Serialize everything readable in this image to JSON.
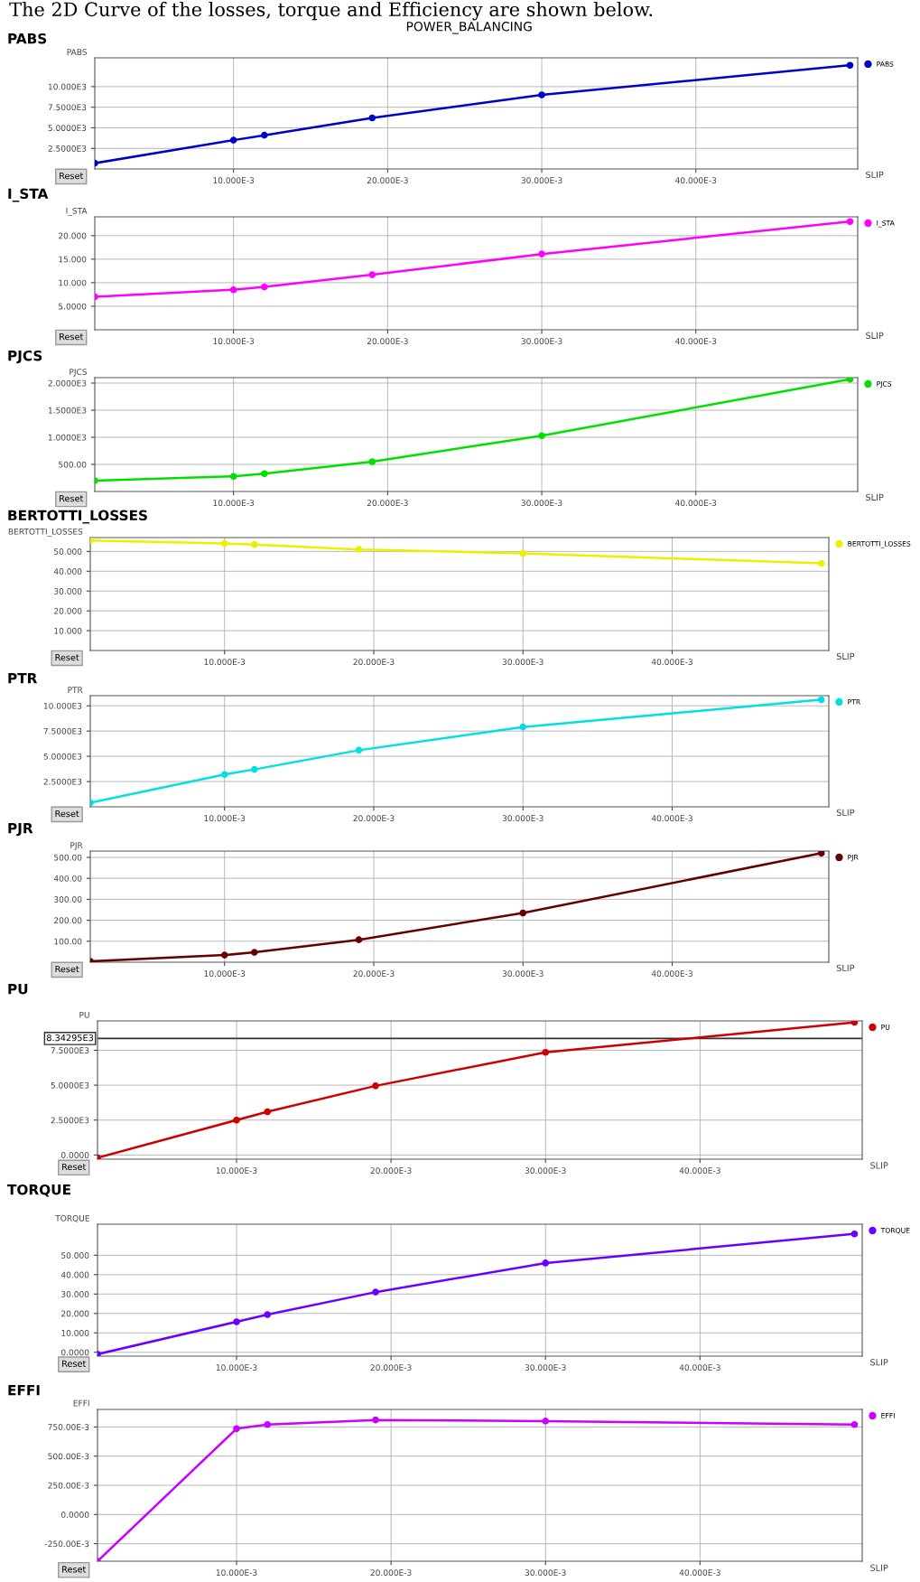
{
  "chart_data": [
    {
      "type": "line",
      "title": "PABS",
      "ylabel": "PABS",
      "xlabel": "SLIP",
      "x": [
        0.001,
        0.01,
        0.012,
        0.019,
        0.03,
        0.05
      ],
      "series": [
        {
          "name": "PABS",
          "color": "#0000cc",
          "values": [
            700,
            3500,
            4100,
            6200,
            9000,
            12600
          ]
        }
      ],
      "xlim": [
        0.001,
        0.0505
      ],
      "xticks": [
        {
          "value": 0.01,
          "label": "10.000E-3"
        },
        {
          "value": 0.02,
          "label": "20.000E-3"
        },
        {
          "value": 0.03,
          "label": "30.000E-3"
        },
        {
          "value": 0.04,
          "label": "40.000E-3"
        }
      ],
      "ylim": [
        0,
        13500
      ],
      "yticks": [
        {
          "value": 2500,
          "label": "2.5000E3"
        },
        {
          "value": 5000,
          "label": "5.0000E3"
        },
        {
          "value": 7500,
          "label": "7.5000E3"
        },
        {
          "value": 10000,
          "label": "10.000E3"
        }
      ],
      "grid": true,
      "legend": "right",
      "marker": "circle",
      "annotations": [
        "The 2D Curve of the losses, torque and Efficiency are shown below.",
        "POWER_BALANCING",
        "Reset"
      ]
    },
    {
      "type": "line",
      "title": "I_STA",
      "ylabel": "I_STA",
      "xlabel": "SLIP",
      "x": [
        0.001,
        0.01,
        0.012,
        0.019,
        0.03,
        0.05
      ],
      "series": [
        {
          "name": "I_STA",
          "color": "#ff00ff",
          "values": [
            7.0,
            8.5,
            9.1,
            11.7,
            16.1,
            23.0
          ]
        }
      ],
      "xlim": [
        0.001,
        0.0505
      ],
      "xticks": [
        {
          "value": 0.01,
          "label": "10.000E-3"
        },
        {
          "value": 0.02,
          "label": "20.000E-3"
        },
        {
          "value": 0.03,
          "label": "30.000E-3"
        },
        {
          "value": 0.04,
          "label": "40.000E-3"
        }
      ],
      "ylim": [
        0,
        24
      ],
      "yticks": [
        {
          "value": 5,
          "label": "5.0000"
        },
        {
          "value": 10,
          "label": "10.000"
        },
        {
          "value": 15,
          "label": "15.000"
        },
        {
          "value": 20,
          "label": "20.000"
        }
      ],
      "grid": true,
      "legend": "right",
      "marker": "circle",
      "annotations": [
        "Reset"
      ]
    },
    {
      "type": "line",
      "title": "PJCS",
      "ylabel": "PJCS",
      "xlabel": "SLIP",
      "x": [
        0.001,
        0.01,
        0.012,
        0.019,
        0.03,
        0.05
      ],
      "series": [
        {
          "name": "PJCS",
          "color": "#00e000",
          "values": [
            200,
            280,
            330,
            550,
            1030,
            2070
          ]
        }
      ],
      "xlim": [
        0.001,
        0.0505
      ],
      "xticks": [
        {
          "value": 0.01,
          "label": "10.000E-3"
        },
        {
          "value": 0.02,
          "label": "20.000E-3"
        },
        {
          "value": 0.03,
          "label": "30.000E-3"
        },
        {
          "value": 0.04,
          "label": "40.000E-3"
        }
      ],
      "ylim": [
        0,
        2100
      ],
      "yticks": [
        {
          "value": 500,
          "label": "500.00"
        },
        {
          "value": 1000,
          "label": "1.0000E3"
        },
        {
          "value": 1500,
          "label": "1.5000E3"
        },
        {
          "value": 2000,
          "label": "2.0000E3"
        }
      ],
      "grid": true,
      "legend": "right",
      "marker": "circle",
      "annotations": [
        "Reset"
      ]
    },
    {
      "type": "line",
      "title": "BERTOTTI_LOSSES",
      "ylabel": "BERTOTTI_LOSSES",
      "xlabel": "SLIP",
      "x": [
        0.001,
        0.01,
        0.012,
        0.019,
        0.03,
        0.05
      ],
      "series": [
        {
          "name": "BERTOTTI_LOSSES",
          "color": "#eeee00",
          "values": [
            55.5,
            54,
            53.5,
            51,
            49,
            44
          ]
        }
      ],
      "xlim": [
        0.001,
        0.0505
      ],
      "xticks": [
        {
          "value": 0.01,
          "label": "10.000E-3"
        },
        {
          "value": 0.02,
          "label": "20.000E-3"
        },
        {
          "value": 0.03,
          "label": "30.000E-3"
        },
        {
          "value": 0.04,
          "label": "40.000E-3"
        }
      ],
      "ylim": [
        0,
        57
      ],
      "yticks": [
        {
          "value": 10,
          "label": "10.000"
        },
        {
          "value": 20,
          "label": "20.000"
        },
        {
          "value": 30,
          "label": "30.000"
        },
        {
          "value": 40,
          "label": "40.000"
        },
        {
          "value": 50,
          "label": "50.000"
        }
      ],
      "grid": true,
      "legend": "right",
      "marker": "circle",
      "annotations": [
        "Reset"
      ]
    },
    {
      "type": "line",
      "title": "PTR",
      "ylabel": "PTR",
      "xlabel": "SLIP",
      "x": [
        0.001,
        0.01,
        0.012,
        0.019,
        0.03,
        0.05
      ],
      "series": [
        {
          "name": "PTR",
          "color": "#00e0e0",
          "values": [
            400,
            3200,
            3700,
            5600,
            7900,
            10600
          ]
        }
      ],
      "xlim": [
        0.001,
        0.0505
      ],
      "xticks": [
        {
          "value": 0.01,
          "label": "10.000E-3"
        },
        {
          "value": 0.02,
          "label": "20.000E-3"
        },
        {
          "value": 0.03,
          "label": "30.000E-3"
        },
        {
          "value": 0.04,
          "label": "40.000E-3"
        }
      ],
      "ylim": [
        0,
        11000
      ],
      "yticks": [
        {
          "value": 2500,
          "label": "2.5000E3"
        },
        {
          "value": 5000,
          "label": "5.0000E3"
        },
        {
          "value": 7500,
          "label": "7.5000E3"
        },
        {
          "value": 10000,
          "label": "10.000E3"
        }
      ],
      "grid": true,
      "legend": "right",
      "marker": "circle",
      "annotations": [
        "Reset"
      ]
    },
    {
      "type": "line",
      "title": "PJR",
      "ylabel": "PJR",
      "xlabel": "SLIP",
      "x": [
        0.001,
        0.01,
        0.012,
        0.019,
        0.03,
        0.05
      ],
      "series": [
        {
          "name": "PJR",
          "color": "#660000",
          "values": [
            4,
            34,
            47,
            107,
            235,
            520
          ]
        }
      ],
      "xlim": [
        0.001,
        0.0505
      ],
      "xticks": [
        {
          "value": 0.01,
          "label": "10.000E-3"
        },
        {
          "value": 0.02,
          "label": "20.000E-3"
        },
        {
          "value": 0.03,
          "label": "30.000E-3"
        },
        {
          "value": 0.04,
          "label": "40.000E-3"
        }
      ],
      "ylim": [
        0,
        530
      ],
      "yticks": [
        {
          "value": 100,
          "label": "100.00"
        },
        {
          "value": 200,
          "label": "200.00"
        },
        {
          "value": 300,
          "label": "300.00"
        },
        {
          "value": 400,
          "label": "400.00"
        },
        {
          "value": 500,
          "label": "500.00"
        }
      ],
      "grid": true,
      "legend": "right",
      "marker": "circle",
      "annotations": [
        "Reset"
      ]
    },
    {
      "type": "line",
      "title": "PU",
      "ylabel": "PU",
      "xlabel": "SLIP",
      "x": [
        0.001,
        0.01,
        0.012,
        0.019,
        0.03,
        0.05
      ],
      "series": [
        {
          "name": "PU",
          "color": "#cc0000",
          "values": [
            -200,
            2500,
            3100,
            4950,
            7350,
            9500
          ]
        }
      ],
      "xlim": [
        0.001,
        0.0505
      ],
      "xticks": [
        {
          "value": 0.01,
          "label": "10.000E-3"
        },
        {
          "value": 0.02,
          "label": "20.000E-3"
        },
        {
          "value": 0.03,
          "label": "30.000E-3"
        },
        {
          "value": 0.04,
          "label": "40.000E-3"
        }
      ],
      "ylim": [
        -300,
        9600
      ],
      "yticks": [
        {
          "value": 0,
          "label": "0.0000"
        },
        {
          "value": 2500,
          "label": "2.5000E3"
        },
        {
          "value": 5000,
          "label": "5.0000E3"
        },
        {
          "value": 7500,
          "label": "7.5000E3"
        }
      ],
      "ref_lines": [
        {
          "axis": "y",
          "value": 8342.95,
          "label": "8.34295E3",
          "color": "#333333"
        }
      ],
      "grid": true,
      "legend": "right",
      "marker": "circle",
      "annotations": [
        "Reset"
      ]
    },
    {
      "type": "line",
      "title": "TORQUE",
      "ylabel": "TORQUE",
      "xlabel": "SLIP",
      "x": [
        0.001,
        0.01,
        0.012,
        0.019,
        0.03,
        0.05
      ],
      "series": [
        {
          "name": "TORQUE",
          "color": "#6a00ff",
          "values": [
            -1,
            15.7,
            19.4,
            31,
            46,
            61
          ]
        }
      ],
      "xlim": [
        0.001,
        0.0505
      ],
      "xticks": [
        {
          "value": 0.01,
          "label": "10.000E-3"
        },
        {
          "value": 0.02,
          "label": "20.000E-3"
        },
        {
          "value": 0.03,
          "label": "30.000E-3"
        },
        {
          "value": 0.04,
          "label": "40.000E-3"
        }
      ],
      "ylim": [
        -2,
        66
      ],
      "yticks": [
        {
          "value": 0,
          "label": "0.0000"
        },
        {
          "value": 10,
          "label": "10.000"
        },
        {
          "value": 20,
          "label": "20.000"
        },
        {
          "value": 30,
          "label": "30.000"
        },
        {
          "value": 40,
          "label": "40.000"
        },
        {
          "value": 50,
          "label": "50.000"
        }
      ],
      "grid": true,
      "legend": "right",
      "marker": "circle",
      "annotations": [
        "Reset"
      ]
    },
    {
      "type": "line",
      "title": "EFFI",
      "ylabel": "EFFI",
      "xlabel": "SLIP",
      "x": [
        0.001,
        0.01,
        0.012,
        0.019,
        0.03,
        0.05
      ],
      "series": [
        {
          "name": "EFFI",
          "color": "#cc00ff",
          "values": [
            -0.4,
            0.735,
            0.77,
            0.81,
            0.8,
            0.77
          ]
        }
      ],
      "xlim": [
        0.001,
        0.0505
      ],
      "xticks": [
        {
          "value": 0.01,
          "label": "10.000E-3"
        },
        {
          "value": 0.02,
          "label": "20.000E-3"
        },
        {
          "value": 0.03,
          "label": "30.000E-3"
        },
        {
          "value": 0.04,
          "label": "40.000E-3"
        }
      ],
      "ylim": [
        -0.4,
        0.9
      ],
      "yticks": [
        {
          "value": -0.25,
          "label": "-250.00E-3"
        },
        {
          "value": 0,
          "label": "0.0000"
        },
        {
          "value": 0.25,
          "label": "250.00E-3"
        },
        {
          "value": 0.5,
          "label": "500.00E-3"
        },
        {
          "value": 0.75,
          "label": "750.00E-3"
        }
      ],
      "grid": true,
      "legend": "right",
      "marker": "circle",
      "annotations": [
        "Reset"
      ]
    }
  ]
}
